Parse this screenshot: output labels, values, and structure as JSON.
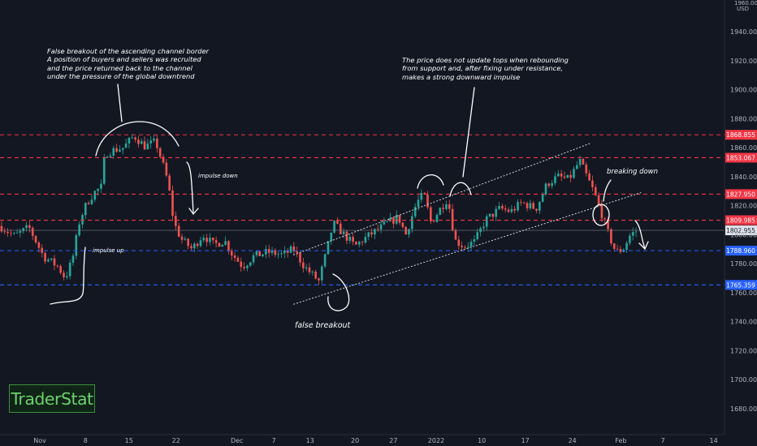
{
  "chart_data": {
    "type": "candlestick",
    "currency": "USD",
    "y_axis": {
      "ticks": [
        1680,
        1700,
        1720,
        1740,
        1760,
        1780,
        1800,
        1820,
        1840,
        1860,
        1880,
        1900,
        1920,
        1940
      ],
      "tick_labels": [
        "1680.000",
        "1700.000",
        "1720.000",
        "1740.000",
        "1760.000",
        "1780.000",
        "1800.000",
        "1820.000",
        "1840.000",
        "1860.000",
        "1880.000",
        "1900.000",
        "1920.000",
        "1940.000"
      ],
      "top_label": "1960.000",
      "range": [
        1656,
        1964
      ]
    },
    "x_axis": {
      "labels": [
        "Nov",
        "8",
        "15",
        "22",
        "Dec",
        "7",
        "13",
        "20",
        "27",
        "2022",
        "10",
        "17",
        "24",
        "Feb",
        "7",
        "14"
      ]
    },
    "levels": [
      {
        "label": "1868.855",
        "value": 1868.855,
        "style": "dashed",
        "color": "#f23645"
      },
      {
        "label": "1853.067",
        "value": 1853.067,
        "style": "dashed",
        "color": "#f23645"
      },
      {
        "label": "1827.950",
        "value": 1827.95,
        "style": "dashed",
        "color": "#f23645"
      },
      {
        "label": "1809.985",
        "value": 1809.985,
        "style": "dashed",
        "color": "#f23645"
      },
      {
        "label": "1788.960",
        "value": 1788.96,
        "style": "dashed",
        "color": "#2962ff"
      },
      {
        "label": "1765.359",
        "value": 1765.359,
        "style": "dashed",
        "color": "#2962ff"
      }
    ],
    "last_price": {
      "label": "1802.955",
      "value": 1802.955
    },
    "channel": {
      "upper": [
        [
          0.405,
          1786
        ],
        [
          0.815,
          1863
        ]
      ],
      "lower": [
        [
          0.405,
          1752
        ],
        [
          0.885,
          1829
        ]
      ]
    },
    "close_path": [
      [
        0.0,
        1806
      ],
      [
        0.02,
        1799
      ],
      [
        0.04,
        1805
      ],
      [
        0.06,
        1785
      ],
      [
        0.08,
        1778
      ],
      [
        0.09,
        1770
      ],
      [
        0.1,
        1783
      ],
      [
        0.11,
        1810
      ],
      [
        0.12,
        1822
      ],
      [
        0.13,
        1829
      ],
      [
        0.14,
        1833
      ],
      [
        0.145,
        1856
      ],
      [
        0.155,
        1858
      ],
      [
        0.17,
        1860
      ],
      [
        0.185,
        1868
      ],
      [
        0.2,
        1861
      ],
      [
        0.215,
        1864
      ],
      [
        0.225,
        1848
      ],
      [
        0.232,
        1836
      ],
      [
        0.24,
        1808
      ],
      [
        0.25,
        1797
      ],
      [
        0.265,
        1790
      ],
      [
        0.28,
        1800
      ],
      [
        0.295,
        1793
      ],
      [
        0.31,
        1796
      ],
      [
        0.32,
        1787
      ],
      [
        0.335,
        1778
      ],
      [
        0.35,
        1785
      ],
      [
        0.37,
        1788
      ],
      [
        0.39,
        1786
      ],
      [
        0.405,
        1790
      ],
      [
        0.42,
        1778
      ],
      [
        0.44,
        1768
      ],
      [
        0.45,
        1787
      ],
      [
        0.46,
        1808
      ],
      [
        0.475,
        1800
      ],
      [
        0.49,
        1792
      ],
      [
        0.505,
        1798
      ],
      [
        0.52,
        1803
      ],
      [
        0.535,
        1808
      ],
      [
        0.55,
        1812
      ],
      [
        0.56,
        1800
      ],
      [
        0.575,
        1822
      ],
      [
        0.585,
        1828
      ],
      [
        0.595,
        1808
      ],
      [
        0.605,
        1816
      ],
      [
        0.618,
        1825
      ],
      [
        0.628,
        1796
      ],
      [
        0.64,
        1792
      ],
      [
        0.655,
        1795
      ],
      [
        0.67,
        1810
      ],
      [
        0.69,
        1818
      ],
      [
        0.705,
        1816
      ],
      [
        0.72,
        1822
      ],
      [
        0.74,
        1818
      ],
      [
        0.755,
        1835
      ],
      [
        0.77,
        1840
      ],
      [
        0.785,
        1838
      ],
      [
        0.8,
        1851
      ],
      [
        0.81,
        1840
      ],
      [
        0.82,
        1829
      ],
      [
        0.83,
        1815
      ],
      [
        0.84,
        1800
      ],
      [
        0.85,
        1788
      ],
      [
        0.86,
        1790
      ],
      [
        0.87,
        1800
      ],
      [
        0.88,
        1803
      ]
    ],
    "annotations": [
      {
        "text": "False breakout of the ascending channel border\nA position of buyers and sellers was recruited\nand the price returned back to the channel\nunder the pressure of the global downtrend"
      },
      {
        "text": "The price does not update tops when rebounding\nfrom support and, after fixing under resistance,\nmakes a strong downward impulse"
      },
      {
        "text": "impulse down"
      },
      {
        "text": "impulse up"
      },
      {
        "text": "false breakout"
      },
      {
        "text": "breaking down"
      }
    ],
    "grid": false
  },
  "logo": {
    "text": "TraderStat"
  }
}
